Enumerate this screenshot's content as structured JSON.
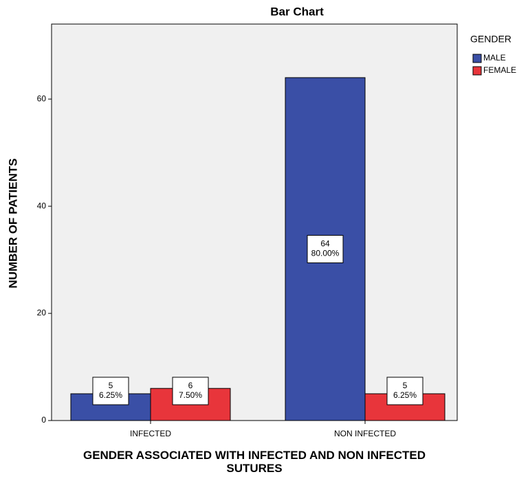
{
  "chart_data": {
    "type": "bar",
    "title": "Bar Chart",
    "xlabel": "GENDER  ASSOCIATED WITH INFECTED AND NON INFECTED SUTURES",
    "ylabel": "NUMBER OF PATIENTS",
    "categories": [
      "INFECTED",
      "NON INFECTED"
    ],
    "legend_title": "GENDER",
    "series": [
      {
        "name": "MALE",
        "color": "#3a4fa6",
        "values": [
          5,
          64
        ],
        "percent_labels": [
          "6.25%",
          "80.00%"
        ]
      },
      {
        "name": "FEMALE",
        "color": "#e8353b",
        "values": [
          6,
          5
        ],
        "percent_labels": [
          "7.50%",
          "6.25%"
        ]
      }
    ],
    "ylim": [
      0,
      74
    ],
    "yticks": [
      0,
      20,
      40,
      60
    ],
    "legend": "right"
  }
}
